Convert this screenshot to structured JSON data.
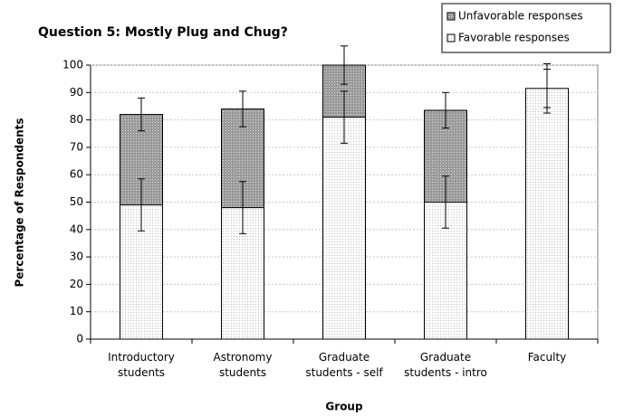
{
  "chart_data": {
    "type": "stacked_bar",
    "title": "Question 5: Mostly Plug and Chug?",
    "x_label": "Group",
    "y_label": "Percentage of Respondents",
    "categories": [
      "Introductory students",
      "Astronomy students",
      "Graduate students - self",
      "Graduate students - intro",
      "Faculty"
    ],
    "series": [
      {
        "name": "Favorable responses",
        "color": "#ffffff",
        "values": [
          49,
          48,
          81,
          50,
          91.5
        ],
        "errors": [
          9.5,
          9.5,
          9.5,
          9.5,
          9
        ]
      },
      {
        "name": "Unfavorable responses",
        "color": "#a0a0a0",
        "values": [
          33,
          36,
          19,
          33.5,
          0
        ],
        "errors": [
          6,
          6.5,
          7,
          6.5,
          7
        ]
      }
    ],
    "ylim": [
      0,
      100
    ],
    "yticks": [
      0,
      10,
      20,
      30,
      40,
      50,
      60,
      70,
      80,
      90,
      100
    ],
    "grid": true,
    "legend": "top-right"
  }
}
